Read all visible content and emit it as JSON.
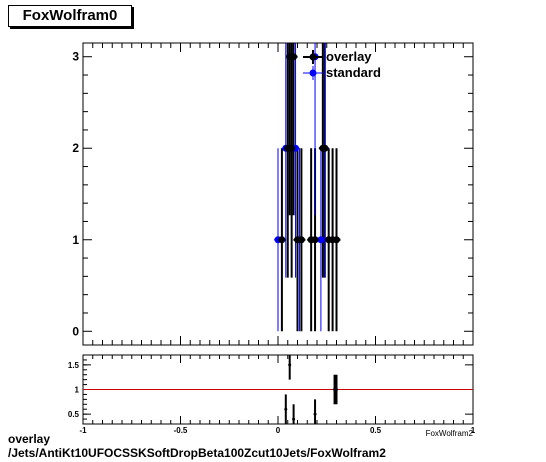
{
  "title": "FoxWolfram0",
  "footer": {
    "line1": "overlay",
    "line2": "/Jets/AntiKt10UFOCSSKSoftDropBeta100Zcut10Jets/FoxWolfram2"
  },
  "x_axis_label_partial": "FoxWolfram2",
  "colors": {
    "overlay": "#000000",
    "standard": "#0000ff",
    "ratio_line": "#cc0000"
  },
  "chart_data": [
    {
      "type": "scatter",
      "title": "FoxWolfram0",
      "xlim": [
        -1,
        1
      ],
      "ylim": [
        -0.15,
        3.15
      ],
      "y_ticks": [
        0,
        1,
        2,
        3
      ],
      "legend": {
        "placement": "top-right",
        "entries": [
          "overlay",
          "standard"
        ]
      },
      "series": [
        {
          "name": "overlay",
          "x": [
            0.02,
            0.05,
            0.06,
            0.07,
            0.08,
            0.1,
            0.12,
            0.17,
            0.19,
            0.23,
            0.24,
            0.26,
            0.28,
            0.3
          ],
          "y": [
            1,
            2,
            3,
            2,
            3,
            1,
            1,
            1,
            1,
            2,
            2,
            1,
            1,
            1
          ]
        },
        {
          "name": "standard",
          "x": [
            0.0,
            0.04,
            0.09,
            0.11,
            0.19,
            0.22,
            0.24
          ],
          "y": [
            1,
            2,
            2,
            1,
            3,
            1,
            2
          ]
        }
      ]
    },
    {
      "type": "scatter",
      "title": "",
      "xlim": [
        -1,
        1
      ],
      "ylim": [
        0.3,
        1.7
      ],
      "x_ticks": [
        -1,
        -0.5,
        0,
        0.5,
        1
      ],
      "y_ticks": [
        0.5,
        1,
        1.5
      ],
      "reference_line": 1,
      "series": [
        {
          "name": "ratio",
          "x": [
            0.04,
            0.06,
            0.08,
            0.19,
            0.29,
            0.3
          ],
          "y": [
            0.6,
            1.5,
            0.4,
            0.5,
            1.0,
            1.0
          ]
        }
      ]
    }
  ]
}
